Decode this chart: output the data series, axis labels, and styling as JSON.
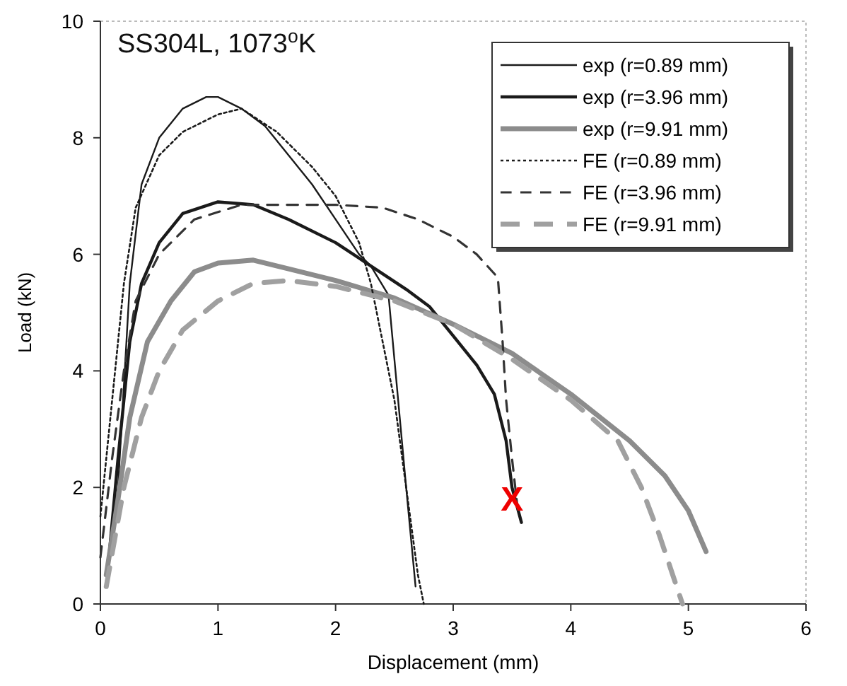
{
  "chart_data": {
    "type": "line",
    "title": "SS304L, 1073$^{o}$K",
    "xlabel": "Displacement  (mm)",
    "ylabel": "Load (kN)",
    "xlim": [
      0,
      6
    ],
    "xticks": [
      0,
      1,
      2,
      3,
      4,
      5,
      6
    ],
    "ylim": [
      0,
      10
    ],
    "yticks": [
      0,
      2,
      4,
      6,
      8,
      10
    ],
    "grid": false,
    "legend": "top right",
    "marker": "none",
    "series": [
      {
        "name": "exp (r=0.89 mm)",
        "color": "#1a1a1a",
        "line_style": "solid",
        "x": [
          0.05,
          0.15,
          0.25,
          0.35,
          0.5,
          0.7,
          0.9,
          1.0,
          1.2,
          1.4,
          1.6,
          1.8,
          2.0,
          2.2,
          2.3,
          2.45,
          2.5,
          2.6,
          2.68
        ],
        "values": [
          0.5,
          2.0,
          5.5,
          7.2,
          8.0,
          8.5,
          8.7,
          8.7,
          8.5,
          8.2,
          7.7,
          7.2,
          6.6,
          6.0,
          5.8,
          5.3,
          4.2,
          2.0,
          0.3
        ]
      },
      {
        "name": "exp (r=3.96 mm)",
        "color": "#1a1a1a",
        "line_style": "solid",
        "x": [
          0.05,
          0.15,
          0.25,
          0.35,
          0.5,
          0.7,
          1.0,
          1.3,
          1.6,
          2.0,
          2.3,
          2.6,
          2.8,
          3.0,
          3.2,
          3.35,
          3.45,
          3.5,
          3.58
        ],
        "values": [
          0.3,
          2.5,
          4.5,
          5.5,
          6.2,
          6.7,
          6.9,
          6.85,
          6.6,
          6.2,
          5.8,
          5.4,
          5.1,
          4.6,
          4.1,
          3.6,
          2.8,
          2.0,
          1.4
        ]
      },
      {
        "name": "exp (r=9.91 mm)",
        "color": "#8c8c8c",
        "line_style": "solid",
        "x": [
          0.05,
          0.15,
          0.25,
          0.4,
          0.6,
          0.8,
          1.0,
          1.3,
          1.6,
          2.0,
          2.5,
          3.0,
          3.5,
          4.0,
          4.5,
          4.8,
          5.0,
          5.15
        ],
        "values": [
          0.5,
          1.8,
          3.2,
          4.5,
          5.2,
          5.7,
          5.85,
          5.9,
          5.75,
          5.55,
          5.25,
          4.8,
          4.3,
          3.6,
          2.8,
          2.2,
          1.6,
          0.9
        ]
      },
      {
        "name": "FE (r=0.89 mm)",
        "color": "#1a1a1a",
        "line_style": "dotted",
        "x": [
          0.0,
          0.1,
          0.2,
          0.3,
          0.5,
          0.7,
          1.0,
          1.2,
          1.5,
          1.8,
          2.0,
          2.2,
          2.3,
          2.4,
          2.5,
          2.6,
          2.7,
          2.75
        ],
        "values": [
          1.5,
          3.5,
          5.5,
          6.8,
          7.7,
          8.1,
          8.4,
          8.5,
          8.1,
          7.5,
          7.0,
          6.2,
          5.5,
          4.5,
          3.5,
          2.0,
          0.5,
          0
        ]
      },
      {
        "name": "FE (r=3.96 mm)",
        "color": "#333333",
        "line_style": "dashed",
        "x": [
          0.0,
          0.1,
          0.2,
          0.3,
          0.5,
          0.8,
          1.2,
          1.6,
          2.0,
          2.4,
          2.7,
          3.0,
          3.2,
          3.38,
          3.42,
          3.45,
          3.5,
          3.55
        ],
        "values": [
          0.8,
          2.5,
          4.0,
          5.2,
          6.0,
          6.6,
          6.85,
          6.85,
          6.85,
          6.8,
          6.6,
          6.3,
          6.0,
          5.6,
          4.5,
          3.5,
          2.5,
          1.6
        ]
      },
      {
        "name": "FE (r=9.91 mm)",
        "color": "#a0a0a0",
        "line_style": "dashed",
        "x": [
          0.05,
          0.2,
          0.35,
          0.5,
          0.7,
          1.0,
          1.3,
          1.6,
          2.0,
          2.5,
          3.0,
          3.5,
          4.0,
          4.4,
          4.6,
          4.75,
          4.85,
          4.95
        ],
        "values": [
          0.3,
          2.0,
          3.2,
          4.0,
          4.7,
          5.2,
          5.5,
          5.55,
          5.45,
          5.2,
          4.8,
          4.2,
          3.5,
          2.8,
          2.0,
          1.2,
          0.6,
          0
        ]
      }
    ],
    "annotations": [
      {
        "text": "X",
        "x": 3.5,
        "y": 1.8
      }
    ]
  }
}
